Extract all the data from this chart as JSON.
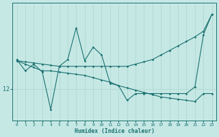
{
  "xlabel": "Humidex (Indice chaleur)",
  "bg_color": "#c5e8e4",
  "line_color": "#1a7070",
  "grid_color_v": "#b0d8d4",
  "grid_color_h": "#b0d8d4",
  "x_values": [
    0,
    1,
    2,
    3,
    4,
    5,
    6,
    7,
    8,
    9,
    10,
    11,
    12,
    13,
    14,
    15,
    16,
    17,
    18,
    19,
    20,
    21,
    22,
    23
  ],
  "y_zigzag": [
    13.3,
    12.8,
    13.1,
    12.75,
    11.1,
    13.0,
    13.3,
    14.7,
    13.25,
    13.85,
    13.5,
    12.25,
    12.15,
    11.5,
    11.8,
    11.8,
    11.8,
    11.8,
    11.8,
    11.8,
    11.8,
    12.1,
    14.4,
    15.3
  ],
  "y_line_up": [
    13.25,
    13.2,
    13.15,
    13.1,
    13.05,
    13.0,
    13.0,
    13.0,
    13.0,
    13.0,
    13.0,
    13.0,
    13.0,
    13.0,
    13.1,
    13.2,
    13.3,
    13.5,
    13.7,
    13.9,
    14.1,
    14.3,
    14.55,
    15.3
  ],
  "y_line_dn": [
    13.25,
    13.1,
    12.95,
    12.8,
    12.8,
    12.75,
    12.7,
    12.65,
    12.6,
    12.5,
    12.4,
    12.3,
    12.15,
    12.05,
    11.95,
    11.85,
    11.75,
    11.65,
    11.6,
    11.55,
    11.5,
    11.45,
    11.8,
    11.8
  ],
  "ytick_value": 12,
  "ylim": [
    10.6,
    15.8
  ],
  "xlim": [
    -0.5,
    23.5
  ]
}
